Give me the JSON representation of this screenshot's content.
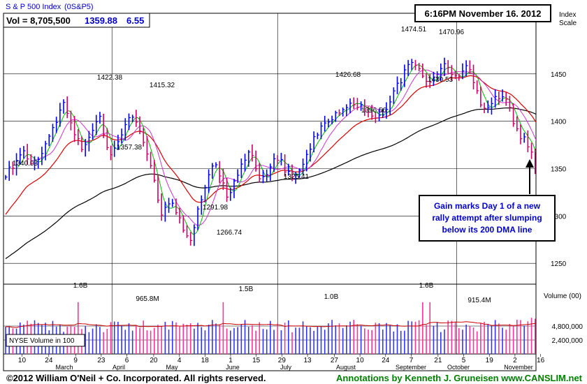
{
  "header": {
    "index_name": "S & P 500 Index",
    "symbol": "(0S&P5)",
    "vol_label": "Vol = 8,705,500",
    "price": "1359.88",
    "change": "6.55",
    "timestamp": "6:16PM November 16. 2012",
    "scale_label_1": "Index",
    "scale_label_2": "Scale",
    "volume_label": "Volume (00)",
    "nyse_label": "NYSE Volume in 100"
  },
  "annotation": {
    "line1": "Gain marks Day 1 of a new",
    "line2": "rally attempt after slumping",
    "line3": "below its 200 DMA line"
  },
  "footer": {
    "copyright": "©2012 William O'Neil + Co. Incorporated. All rights reserved.",
    "annotations": "Annotations by Kenneth J. Gruneisen www.CANSLIM.net"
  },
  "colors": {
    "up_bar": "#0000ff",
    "down_bar": "#cc0066",
    "ma_short": "#00bb00",
    "ma_mid": "#cc33cc",
    "ma_50": "#dd0000",
    "ma_200": "#000000",
    "vol_up": "#3333ff",
    "vol_down": "#ff3399",
    "vol_avg": "#cc0000",
    "annotation_text": "#0000cc",
    "footer_green": "#008000"
  },
  "chart_data": {
    "type": "ohlc",
    "price_axis": {
      "ticks": [
        1250,
        1300,
        1350,
        1400,
        1450
      ],
      "ylim": [
        1228,
        1500
      ]
    },
    "volume_axis": {
      "ticks": [
        "2,400,000",
        "4,800,000"
      ],
      "max": 12000000
    },
    "x_ticks": [
      "10",
      "24",
      "9",
      "23",
      "6",
      "20",
      "4",
      "18",
      "1",
      "15",
      "29",
      "13",
      "27",
      "10",
      "24",
      "7",
      "21",
      "5",
      "19",
      "2",
      "16"
    ],
    "month_labels": [
      "March",
      "April",
      "May",
      "June",
      "July",
      "August",
      "September",
      "October",
      "November"
    ],
    "price_annotations": [
      "1340.03",
      "1422.38",
      "1357.38",
      "1415.32",
      "1291.98",
      "1266.74",
      "1325.41",
      "1426.68",
      "1396.56",
      "1474.51",
      "1430.53",
      "1470.96"
    ],
    "volume_annotations": [
      "1.6B",
      "965.8M",
      "1.5B",
      "1.0B",
      "1.6B",
      "915.4M"
    ],
    "anchors": [
      [
        0,
        1345
      ],
      [
        8,
        1353
      ],
      [
        16,
        1372
      ],
      [
        20,
        1352
      ],
      [
        28,
        1362
      ],
      [
        40,
        1396
      ],
      [
        48,
        1418
      ],
      [
        54,
        1398
      ],
      [
        62,
        1372
      ],
      [
        70,
        1385
      ],
      [
        78,
        1405
      ],
      [
        82,
        1382
      ],
      [
        86,
        1364
      ],
      [
        90,
        1372
      ],
      [
        100,
        1400
      ],
      [
        106,
        1409
      ],
      [
        110,
        1392
      ],
      [
        118,
        1362
      ],
      [
        124,
        1330
      ],
      [
        130,
        1300
      ],
      [
        136,
        1316
      ],
      [
        142,
        1302
      ],
      [
        148,
        1284
      ],
      [
        154,
        1274
      ],
      [
        160,
        1310
      ],
      [
        166,
        1335
      ],
      [
        172,
        1360
      ],
      [
        178,
        1340
      ],
      [
        184,
        1316
      ],
      [
        190,
        1338
      ],
      [
        196,
        1356
      ],
      [
        202,
        1370
      ],
      [
        208,
        1346
      ],
      [
        214,
        1336
      ],
      [
        220,
        1356
      ],
      [
        226,
        1364
      ],
      [
        232,
        1346
      ],
      [
        238,
        1340
      ],
      [
        244,
        1350
      ],
      [
        250,
        1370
      ],
      [
        256,
        1382
      ],
      [
        262,
        1394
      ],
      [
        268,
        1402
      ],
      [
        274,
        1409
      ],
      [
        280,
        1416
      ],
      [
        286,
        1422
      ],
      [
        292,
        1416
      ],
      [
        298,
        1412
      ],
      [
        304,
        1408
      ],
      [
        310,
        1404
      ],
      [
        316,
        1414
      ],
      [
        322,
        1432
      ],
      [
        328,
        1446
      ],
      [
        334,
        1462
      ],
      [
        340,
        1458
      ],
      [
        346,
        1446
      ],
      [
        352,
        1440
      ],
      [
        358,
        1455
      ],
      [
        364,
        1460
      ],
      [
        370,
        1448
      ],
      [
        376,
        1445
      ],
      [
        382,
        1458
      ],
      [
        388,
        1440
      ],
      [
        394,
        1416
      ],
      [
        400,
        1410
      ],
      [
        406,
        1425
      ],
      [
        412,
        1426
      ],
      [
        418,
        1408
      ],
      [
        424,
        1388
      ],
      [
        430,
        1380
      ],
      [
        434,
        1370
      ],
      [
        437,
        1354
      ],
      [
        440,
        1359.88
      ]
    ]
  }
}
